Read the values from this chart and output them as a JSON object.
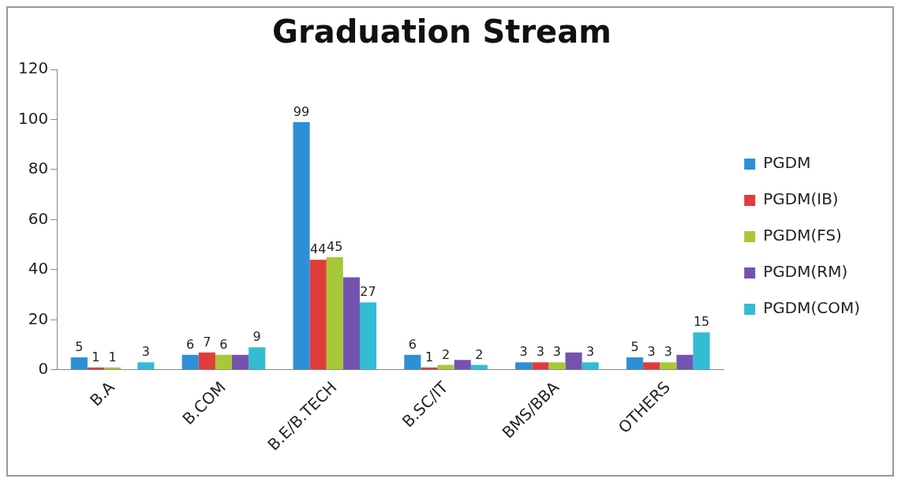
{
  "chart_data": {
    "type": "bar",
    "title": "Graduation Stream",
    "categories": [
      "B.A",
      "B.COM",
      "B.E/B.TECH",
      "B.SC/IT",
      "BMS/BBA",
      "OTHERS"
    ],
    "series": [
      {
        "name": "PGDM",
        "color": "#2e8fd6",
        "values": [
          5,
          6,
          99,
          6,
          3,
          5
        ],
        "value_labels": [
          "5",
          "6",
          "99",
          "6",
          "3",
          "5"
        ]
      },
      {
        "name": "PGDM(IB)",
        "color": "#e03c3c",
        "values": [
          1,
          7,
          44,
          1,
          3,
          3
        ],
        "value_labels": [
          "1",
          "7",
          "44",
          "1",
          "3",
          "3"
        ]
      },
      {
        "name": "PGDM(FS)",
        "color": "#a8c83a",
        "values": [
          1,
          6,
          45,
          2,
          3,
          3
        ],
        "value_labels": [
          "1",
          "6",
          "45",
          "2",
          "3",
          "3"
        ]
      },
      {
        "name": "PGDM(RM)",
        "color": "#7453b0",
        "values": [
          0,
          6,
          37,
          4,
          7,
          6
        ]
      },
      {
        "name": "PGDM(COM)",
        "color": "#33bcd4",
        "values": [
          3,
          9,
          27,
          2,
          3,
          15
        ],
        "value_labels": [
          "3",
          "9",
          "27",
          "2",
          "3",
          "15"
        ]
      }
    ],
    "ylim": [
      0,
      120
    ],
    "yticks": [
      0,
      20,
      40,
      60,
      80,
      100,
      120
    ],
    "grid": false,
    "legend": "right"
  }
}
